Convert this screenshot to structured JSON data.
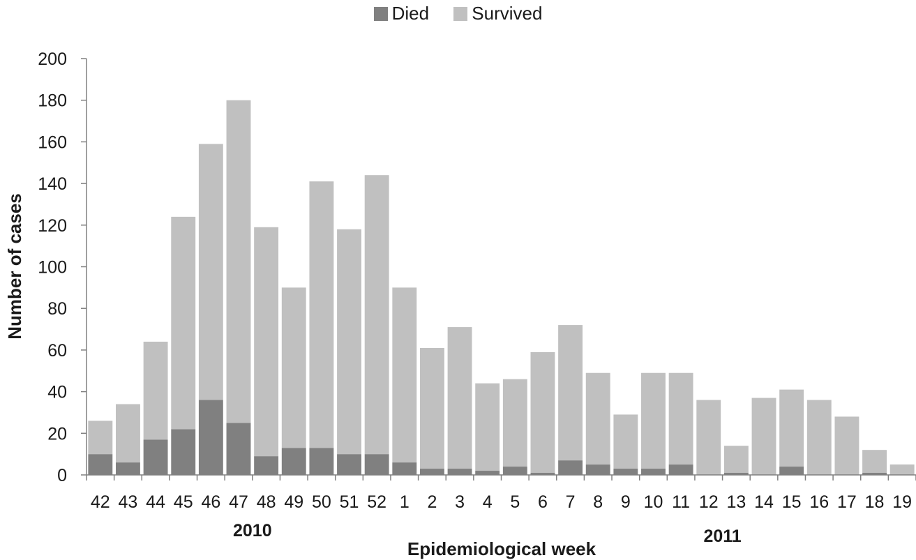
{
  "chart_data": {
    "type": "bar",
    "stacked": true,
    "xlabel": "Epidemiological week",
    "ylabel": "Number of cases",
    "ylim": [
      0,
      200
    ],
    "yticks": [
      0,
      20,
      40,
      60,
      80,
      100,
      120,
      140,
      160,
      180,
      200
    ],
    "legend_position": "top-center",
    "grid": false,
    "categories": [
      "42",
      "43",
      "44",
      "45",
      "46",
      "47",
      "48",
      "49",
      "50",
      "51",
      "52",
      "1",
      "2",
      "3",
      "4",
      "5",
      "6",
      "7",
      "8",
      "9",
      "10",
      "11",
      "12",
      "13",
      "14",
      "15",
      "16",
      "17",
      "18",
      "19"
    ],
    "year_labels": [
      {
        "label": "2010",
        "center_week_index": 5.5
      },
      {
        "label": "2011",
        "center_week_index": 22.5
      }
    ],
    "series": [
      {
        "name": "Died",
        "color": "#808080",
        "values": [
          10,
          6,
          17,
          22,
          36,
          25,
          9,
          13,
          13,
          10,
          10,
          6,
          3,
          3,
          2,
          4,
          1,
          7,
          5,
          3,
          3,
          5,
          0,
          1,
          0,
          4,
          0,
          0,
          1,
          0
        ]
      },
      {
        "name": "Survived",
        "color": "#c0c0c0",
        "values": [
          16,
          28,
          47,
          102,
          123,
          155,
          110,
          77,
          128,
          108,
          134,
          84,
          58,
          68,
          42,
          42,
          58,
          65,
          44,
          26,
          46,
          44,
          36,
          13,
          37,
          37,
          36,
          28,
          11,
          5
        ]
      }
    ]
  }
}
